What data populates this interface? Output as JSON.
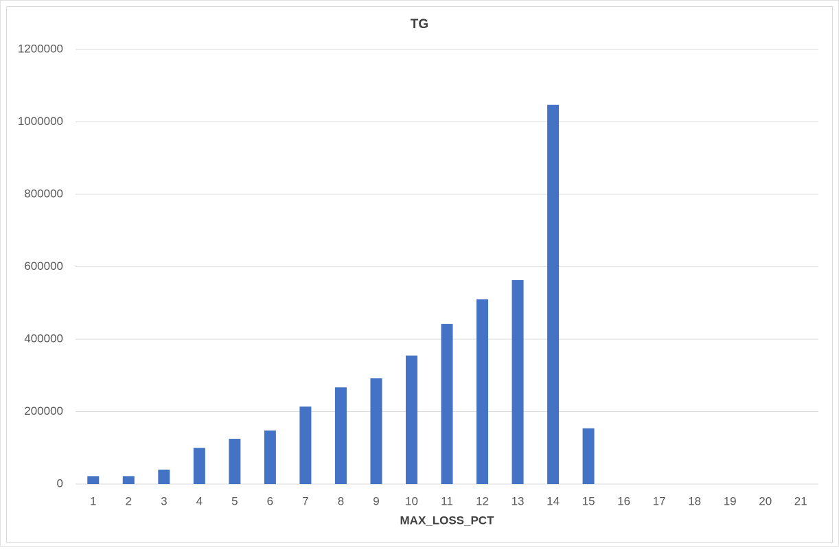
{
  "chart_data": {
    "type": "bar",
    "title": "TG",
    "x_label": "MAX_LOSS_PCT",
    "categories": [
      "1",
      "2",
      "3",
      "4",
      "5",
      "6",
      "7",
      "8",
      "9",
      "10",
      "11",
      "12",
      "13",
      "14",
      "15",
      "16",
      "17",
      "18",
      "19",
      "20",
      "21"
    ],
    "values": [
      22000,
      22000,
      40000,
      100000,
      125000,
      148000,
      214000,
      267000,
      292000,
      355000,
      442000,
      510000,
      563000,
      1047000,
      154000,
      0,
      0,
      0,
      0,
      0,
      0
    ],
    "color": "#4472c4",
    "ylim": [
      0,
      1200000
    ],
    "yticks": [
      0,
      200000,
      400000,
      600000,
      800000,
      1000000,
      1200000
    ],
    "grid": true
  }
}
